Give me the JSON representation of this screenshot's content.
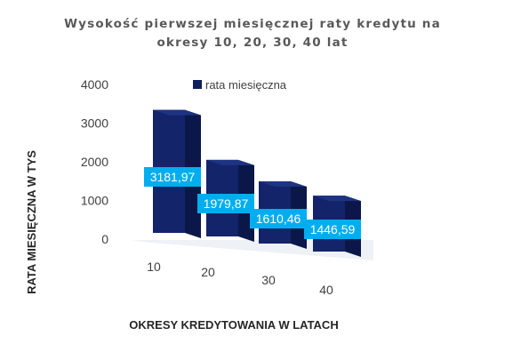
{
  "chart_data": {
    "type": "bar",
    "title_lines": [
      "Wysokość pierwszej miesięcznej raty kredytu na",
      "okresy 10, 20, 30, 40 lat"
    ],
    "xlabel": "OKRESY KREDYTOWANIA W LATACH",
    "ylabel": "RATA MIESIĘCZNA W TYS",
    "categories": [
      "10",
      "20",
      "30",
      "40"
    ],
    "series": [
      {
        "name": "rata miesięczna",
        "values": [
          3181.97,
          1979.87,
          1610.46,
          1446.59
        ],
        "labels": [
          "3181,97",
          "1979,87",
          "1610,46",
          "1446,59"
        ]
      }
    ],
    "yticks": [
      "0",
      "1000",
      "2000",
      "3000",
      "4000"
    ],
    "ylim": [
      0,
      4000
    ],
    "grid": false,
    "legend_position": "top-right",
    "style": "3d-bar",
    "colors": {
      "bar": "#0f1f5c",
      "label_bg": "#00aeef",
      "label_text": "#ffffff"
    }
  }
}
